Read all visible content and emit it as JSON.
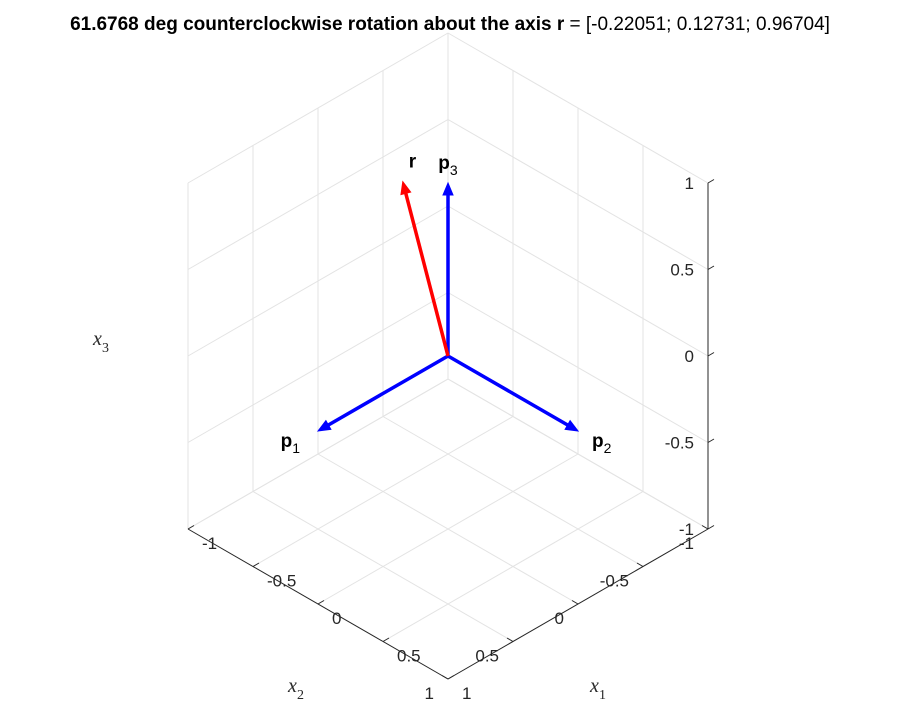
{
  "title": {
    "prefix": "61.6768 deg counterclockwise rotation about the axis ",
    "symbol": "r",
    "suffix": " = [-0.22051; 0.12731; 0.96704]"
  },
  "chart_data": {
    "type": "3d-quiver",
    "title": "61.6768 deg counterclockwise rotation about the axis r = [-0.22051; 0.12731; 0.96704]",
    "xlabel": {
      "base": "x",
      "sub": "1"
    },
    "ylabel": {
      "base": "x",
      "sub": "2"
    },
    "zlabel": {
      "base": "x",
      "sub": "3"
    },
    "xlim": [
      -1,
      1
    ],
    "ylim": [
      -1,
      1
    ],
    "zlim": [
      -1,
      1
    ],
    "ticks": {
      "x": [
        "-1",
        "-0.5",
        "0",
        "0.5",
        "1"
      ],
      "y": [
        "-1",
        "-0.5",
        "0",
        "0.5",
        "1"
      ],
      "z": [
        "-1",
        "-0.5",
        "0",
        "0.5",
        "1"
      ]
    },
    "tick_values": [
      -1,
      -0.5,
      0,
      0.5,
      1
    ],
    "grid": true,
    "view": {
      "azimuth": 135,
      "elevation": 35.26
    },
    "vectors": [
      {
        "name": "p1",
        "label_base": "p",
        "label_sub": "1",
        "start": [
          0,
          0,
          0
        ],
        "end": [
          0,
          1,
          0
        ],
        "color": "#0000ff"
      },
      {
        "name": "p2",
        "label_base": "p",
        "label_sub": "2",
        "start": [
          0,
          0,
          0
        ],
        "end": [
          1,
          0,
          0
        ],
        "color": "#0000ff"
      },
      {
        "name": "p3",
        "label_base": "p",
        "label_sub": "3",
        "start": [
          0,
          0,
          0
        ],
        "end": [
          0,
          0,
          1
        ],
        "color": "#0000ff"
      },
      {
        "name": "r",
        "label_base": "r",
        "label_sub": "",
        "start": [
          0,
          0,
          0
        ],
        "end": [
          -0.22051,
          0.12731,
          0.96704
        ],
        "color": "#ff0000"
      }
    ]
  }
}
